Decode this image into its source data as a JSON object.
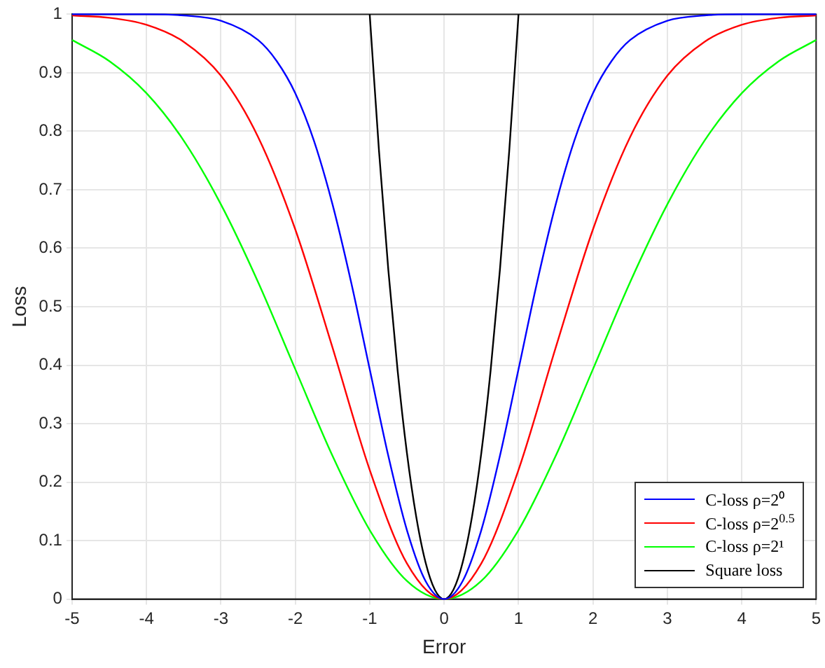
{
  "chart_data": {
    "type": "line",
    "xlabel": "Error",
    "ylabel": "Loss",
    "xlim": [
      -5,
      5
    ],
    "xticks": [
      -5,
      -4,
      -3,
      -2,
      -1,
      0,
      1,
      2,
      3,
      4,
      5
    ],
    "ylim": [
      0,
      1
    ],
    "yticks": [
      0,
      0.1,
      0.2,
      0.3,
      0.4,
      0.5,
      0.6,
      0.7,
      0.8,
      0.9,
      1
    ],
    "grid": true,
    "legend": "bottom right",
    "marker": "none",
    "line_style": "solid",
    "series": [
      {
        "name": "C-loss ρ=2⁰",
        "color": "#0000ff",
        "x": [
          -5,
          -4.5,
          -4,
          -3.5,
          -3,
          -2.5,
          -2.25,
          -2,
          -1.75,
          -1.5,
          -1.25,
          -1,
          -0.75,
          -0.5,
          -0.25,
          0,
          0.25,
          0.5,
          0.75,
          1,
          1.25,
          1.5,
          1.75,
          2,
          2.25,
          2.5,
          3,
          3.5,
          4,
          4.5,
          5
        ],
        "values": [
          1,
          1,
          1,
          0.998,
          0.989,
          0.956,
          0.92,
          0.865,
          0.784,
          0.675,
          0.542,
          0.393,
          0.245,
          0.118,
          0.031,
          0,
          0.031,
          0.118,
          0.245,
          0.393,
          0.542,
          0.675,
          0.784,
          0.865,
          0.92,
          0.956,
          0.989,
          0.998,
          1,
          1,
          1
        ]
      },
      {
        "name": "C-loss ρ=2$^{0.5}$",
        "color": "#ff0000",
        "x": [
          -5,
          -4.5,
          -4,
          -3.5,
          -3,
          -2.5,
          -2,
          -1.5,
          -1,
          -0.5,
          0,
          0.5,
          1,
          1.5,
          2,
          2.5,
          3,
          3.5,
          4,
          4.5,
          5
        ],
        "values": [
          0.998,
          0.994,
          0.982,
          0.953,
          0.895,
          0.79,
          0.632,
          0.43,
          0.221,
          0.061,
          0,
          0.061,
          0.221,
          0.43,
          0.632,
          0.79,
          0.895,
          0.953,
          0.982,
          0.994,
          0.998
        ]
      },
      {
        "name": "C-loss ρ=2¹",
        "color": "#00ff00",
        "x": [
          -5,
          -4.5,
          -4,
          -3.5,
          -3,
          -2.5,
          -2,
          -1.5,
          -1,
          -0.5,
          0,
          0.5,
          1,
          1.5,
          2,
          2.5,
          3,
          3.5,
          4,
          4.5,
          5
        ],
        "values": [
          0.956,
          0.92,
          0.865,
          0.784,
          0.675,
          0.542,
          0.393,
          0.245,
          0.118,
          0.031,
          0,
          0.031,
          0.118,
          0.245,
          0.393,
          0.542,
          0.675,
          0.784,
          0.865,
          0.92,
          0.956
        ]
      },
      {
        "name": "Square loss",
        "color": "#000000",
        "x": [
          -1,
          -0.875,
          -0.75,
          -0.625,
          -0.5,
          -0.375,
          -0.25,
          -0.125,
          0,
          0.125,
          0.25,
          0.375,
          0.5,
          0.625,
          0.75,
          0.875,
          1
        ],
        "values": [
          1,
          0.766,
          0.563,
          0.391,
          0.25,
          0.141,
          0.063,
          0.016,
          0,
          0.016,
          0.063,
          0.141,
          0.25,
          0.391,
          0.563,
          0.766,
          1
        ]
      }
    ]
  }
}
